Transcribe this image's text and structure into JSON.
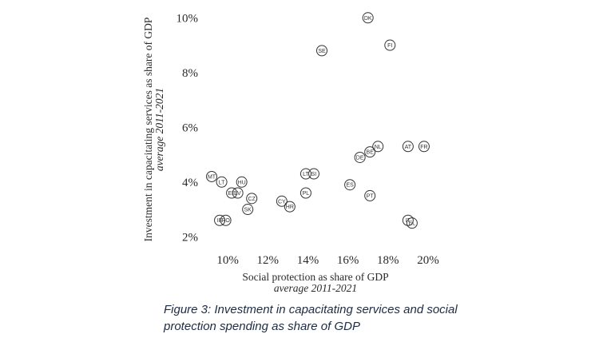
{
  "chart_data": {
    "type": "scatter",
    "title": "",
    "xlabel": "Social protection as share of GDP",
    "xlabel_sub": "average 2011-2021",
    "ylabel": "Investment in capacitating services as share of GDP",
    "ylabel_sub": "average 2011-2021",
    "xlim": [
      8.8,
      20.6
    ],
    "ylim": [
      1.6,
      10.3
    ],
    "x_ticks": [
      10,
      12,
      14,
      16,
      18,
      20
    ],
    "x_tick_labels": [
      "10%",
      "12%",
      "14%",
      "16%",
      "18%",
      "20%"
    ],
    "y_ticks": [
      2,
      4,
      6,
      8,
      10
    ],
    "y_tick_labels": [
      "2%",
      "4%",
      "6%",
      "8%",
      "10%"
    ],
    "grid": false,
    "points": [
      {
        "label": "DK",
        "x": 17.0,
        "y": 10.0
      },
      {
        "label": "FI",
        "x": 18.1,
        "y": 9.0
      },
      {
        "label": "SE",
        "x": 14.7,
        "y": 8.8
      },
      {
        "label": "FR",
        "x": 19.8,
        "y": 5.3
      },
      {
        "label": "AT",
        "x": 19.0,
        "y": 5.3
      },
      {
        "label": "NL",
        "x": 17.5,
        "y": 5.3
      },
      {
        "label": "BE",
        "x": 17.1,
        "y": 5.1
      },
      {
        "label": "DE",
        "x": 16.6,
        "y": 4.9
      },
      {
        "label": "SI",
        "x": 14.3,
        "y": 4.3
      },
      {
        "label": "LT",
        "x": 13.9,
        "y": 4.3
      },
      {
        "label": "ES",
        "x": 16.1,
        "y": 3.9
      },
      {
        "label": "PT",
        "x": 17.1,
        "y": 3.5
      },
      {
        "label": "PL",
        "x": 13.9,
        "y": 3.6
      },
      {
        "label": "CY",
        "x": 12.7,
        "y": 3.3
      },
      {
        "label": "HR",
        "x": 13.1,
        "y": 3.1
      },
      {
        "label": "MT",
        "x": 9.2,
        "y": 4.2
      },
      {
        "label": "LT",
        "x": 9.7,
        "y": 4.0
      },
      {
        "label": "HU",
        "x": 10.7,
        "y": 4.0
      },
      {
        "label": "LV",
        "x": 10.5,
        "y": 3.6
      },
      {
        "label": "EE",
        "x": 10.2,
        "y": 3.6
      },
      {
        "label": "CZ",
        "x": 11.2,
        "y": 3.4
      },
      {
        "label": "SK",
        "x": 11.0,
        "y": 3.0
      },
      {
        "label": "IE",
        "x": 9.6,
        "y": 2.6
      },
      {
        "label": "RO",
        "x": 9.9,
        "y": 2.6
      },
      {
        "label": "IT",
        "x": 19.0,
        "y": 2.6
      },
      {
        "label": "EL",
        "x": 19.2,
        "y": 2.5
      }
    ]
  },
  "caption": {
    "line1": "Figure 3: Investment in capacitating services and social",
    "line2": "protection spending as share of GDP"
  }
}
